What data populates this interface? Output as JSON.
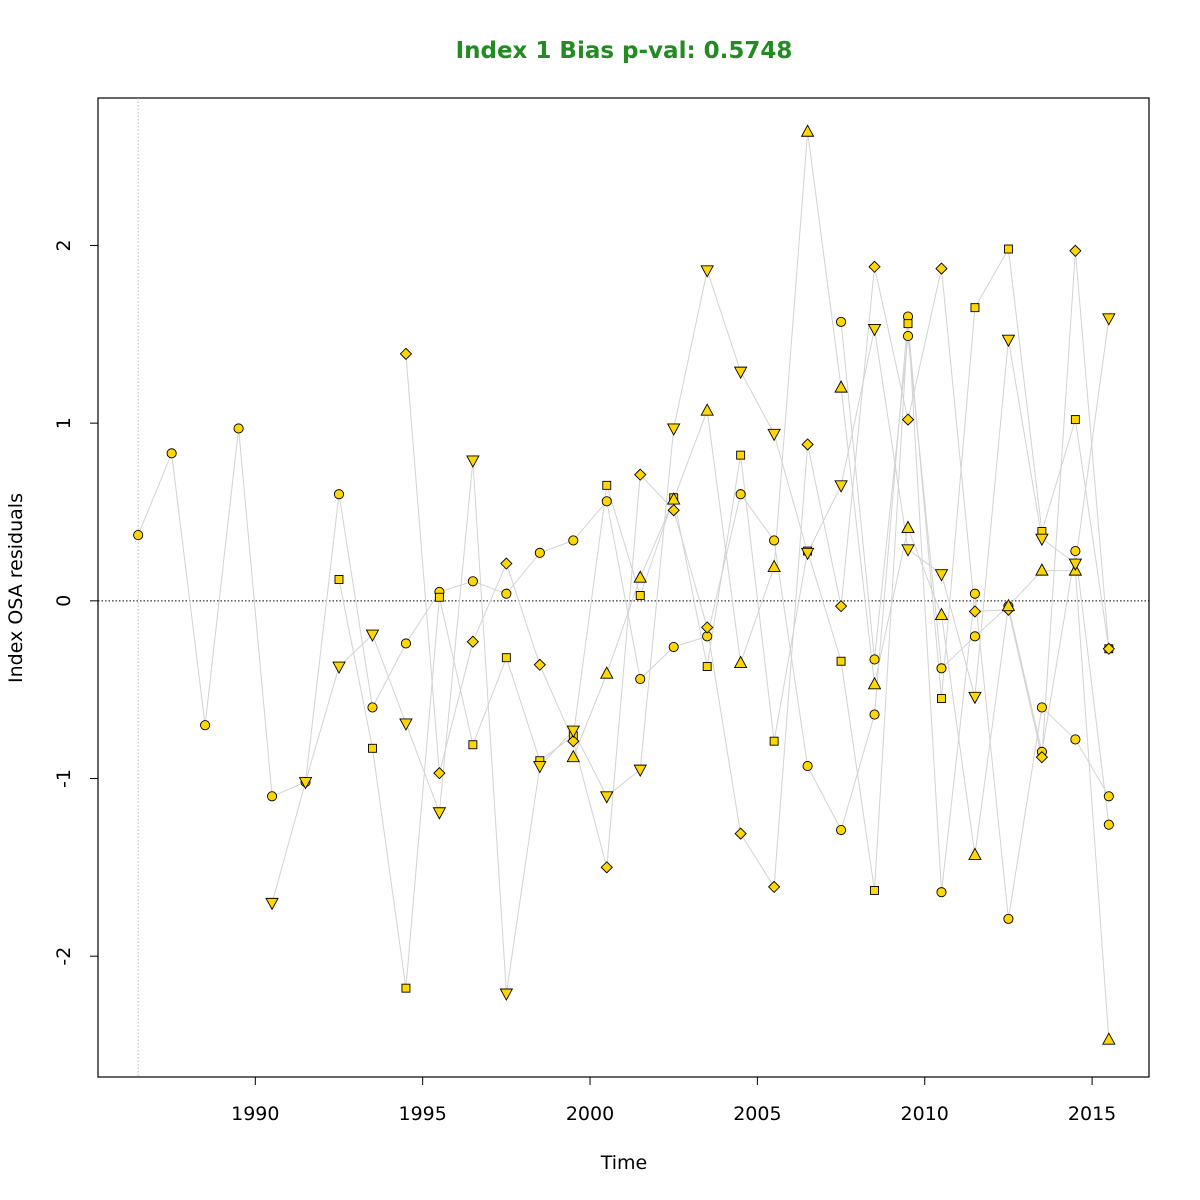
{
  "chart_data": {
    "type": "scatter",
    "title": "Index 1 Bias p-val: 0.5748",
    "title_color": "#228B22",
    "xlabel": "Time",
    "ylabel": "Index OSA residuals",
    "xlim": [
      1985.3,
      2016.7
    ],
    "ylim": [
      -2.68,
      2.83
    ],
    "x_ticks": [
      1990,
      1995,
      2000,
      2005,
      2010,
      2015
    ],
    "y_ticks": [
      -2,
      -1,
      0,
      1,
      2
    ],
    "reference_line_y": 0,
    "reference_line_x": 1986.5,
    "marker_fill": "#FFD700",
    "line_color": "#D3D3D3",
    "series": [
      {
        "marker": "circle",
        "points": [
          [
            1986.5,
            0.37
          ],
          [
            1987.5,
            0.83
          ],
          [
            1988.5,
            -0.7
          ],
          [
            1989.5,
            0.97
          ],
          [
            1990.5,
            -1.1
          ],
          [
            1991.5,
            -1.02
          ],
          [
            1992.5,
            0.6
          ],
          [
            1993.5,
            -0.6
          ],
          [
            1994.5,
            -0.24
          ],
          [
            1995.5,
            0.05
          ],
          [
            1996.5,
            0.11
          ],
          [
            1997.5,
            0.04
          ],
          [
            1998.5,
            0.27
          ],
          [
            1999.5,
            0.34
          ],
          [
            2000.5,
            0.56
          ],
          [
            2001.5,
            -0.44
          ],
          [
            2002.5,
            -0.26
          ],
          [
            2003.5,
            -0.2
          ],
          [
            2004.5,
            0.6
          ],
          [
            2005.5,
            0.34
          ],
          [
            2006.5,
            -0.93
          ],
          [
            2007.5,
            -1.29
          ],
          [
            2008.5,
            -0.64
          ],
          [
            2009.5,
            1.6
          ],
          [
            2010.5,
            -1.64
          ],
          [
            2011.5,
            0.04
          ],
          [
            2012.5,
            -1.79
          ],
          [
            2013.5,
            -0.6
          ],
          [
            2014.5,
            -0.78
          ],
          [
            2015.5,
            -1.1
          ]
        ]
      },
      {
        "marker": "circle",
        "points": [
          [
            2007.5,
            1.57
          ],
          [
            2008.5,
            -0.33
          ],
          [
            2009.5,
            1.49
          ],
          [
            2010.5,
            -0.38
          ],
          [
            2011.5,
            -0.2
          ],
          [
            2012.5,
            -0.03
          ],
          [
            2013.5,
            -0.85
          ],
          [
            2014.5,
            0.28
          ],
          [
            2015.5,
            -1.26
          ]
        ]
      },
      {
        "marker": "square",
        "points": [
          [
            1992.5,
            0.12
          ],
          [
            1993.5,
            -0.83
          ],
          [
            1994.5,
            -2.18
          ],
          [
            1995.5,
            0.02
          ],
          [
            1996.5,
            -0.81
          ],
          [
            1997.5,
            -0.32
          ],
          [
            1998.5,
            -0.9
          ],
          [
            1999.5,
            -0.76
          ],
          [
            2000.5,
            0.65
          ],
          [
            2001.5,
            0.03
          ],
          [
            2002.5,
            0.58
          ],
          [
            2003.5,
            -0.37
          ],
          [
            2004.5,
            0.82
          ],
          [
            2005.5,
            -0.79
          ],
          [
            2006.5,
            0.28
          ],
          [
            2007.5,
            -0.34
          ],
          [
            2008.5,
            -1.63
          ],
          [
            2009.5,
            1.56
          ],
          [
            2010.5,
            -0.55
          ],
          [
            2011.5,
            1.65
          ],
          [
            2012.5,
            1.98
          ],
          [
            2013.5,
            0.39
          ],
          [
            2014.5,
            1.02
          ],
          [
            2015.5,
            -0.27
          ]
        ]
      },
      {
        "marker": "diamond",
        "points": [
          [
            1994.5,
            1.39
          ],
          [
            1995.5,
            -0.97
          ],
          [
            1996.5,
            -0.23
          ],
          [
            1997.5,
            0.21
          ],
          [
            1998.5,
            -0.36
          ],
          [
            1999.5,
            -0.79
          ],
          [
            2000.5,
            -1.5
          ],
          [
            2001.5,
            0.71
          ],
          [
            2002.5,
            0.51
          ],
          [
            2003.5,
            -0.15
          ],
          [
            2004.5,
            -1.31
          ],
          [
            2005.5,
            -1.61
          ],
          [
            2006.5,
            0.88
          ],
          [
            2007.5,
            -0.03
          ],
          [
            2008.5,
            1.88
          ],
          [
            2009.5,
            1.02
          ],
          [
            2010.5,
            1.87
          ],
          [
            2011.5,
            -0.06
          ],
          [
            2012.5,
            -0.05
          ],
          [
            2013.5,
            -0.88
          ],
          [
            2014.5,
            1.97
          ],
          [
            2015.5,
            -0.27
          ]
        ]
      },
      {
        "marker": "triangle-up",
        "points": [
          [
            1999.5,
            -0.88
          ],
          [
            2000.5,
            -0.41
          ],
          [
            2001.5,
            0.13
          ],
          [
            2002.5,
            0.57
          ],
          [
            2003.5,
            1.07
          ],
          [
            2004.5,
            -0.35
          ],
          [
            2005.5,
            0.19
          ],
          [
            2006.5,
            2.64
          ],
          [
            2007.5,
            1.2
          ],
          [
            2008.5,
            -0.47
          ],
          [
            2009.5,
            0.41
          ],
          [
            2010.5,
            -0.08
          ],
          [
            2011.5,
            -1.43
          ],
          [
            2012.5,
            -0.03
          ],
          [
            2013.5,
            0.17
          ],
          [
            2014.5,
            0.17
          ],
          [
            2015.5,
            -2.47
          ]
        ]
      },
      {
        "marker": "triangle-down",
        "points": [
          [
            1990.5,
            -1.7
          ],
          [
            1991.5,
            -1.02
          ],
          [
            1992.5,
            -0.37
          ],
          [
            1993.5,
            -0.19
          ],
          [
            1994.5,
            -0.69
          ],
          [
            1995.5,
            -1.19
          ],
          [
            1996.5,
            0.79
          ],
          [
            1997.5,
            -2.21
          ],
          [
            1998.5,
            -0.93
          ],
          [
            1999.5,
            -0.73
          ],
          [
            2000.5,
            -1.1
          ],
          [
            2001.5,
            -0.95
          ],
          [
            2002.5,
            0.97
          ],
          [
            2003.5,
            1.86
          ],
          [
            2004.5,
            1.29
          ],
          [
            2005.5,
            0.94
          ],
          [
            2006.5,
            0.27
          ],
          [
            2007.5,
            0.65
          ],
          [
            2008.5,
            1.53
          ],
          [
            2009.5,
            0.29
          ],
          [
            2010.5,
            0.15
          ],
          [
            2011.5,
            -0.54
          ],
          [
            2012.5,
            1.47
          ],
          [
            2013.5,
            0.35
          ],
          [
            2014.5,
            0.21
          ],
          [
            2015.5,
            1.59
          ]
        ]
      }
    ]
  }
}
